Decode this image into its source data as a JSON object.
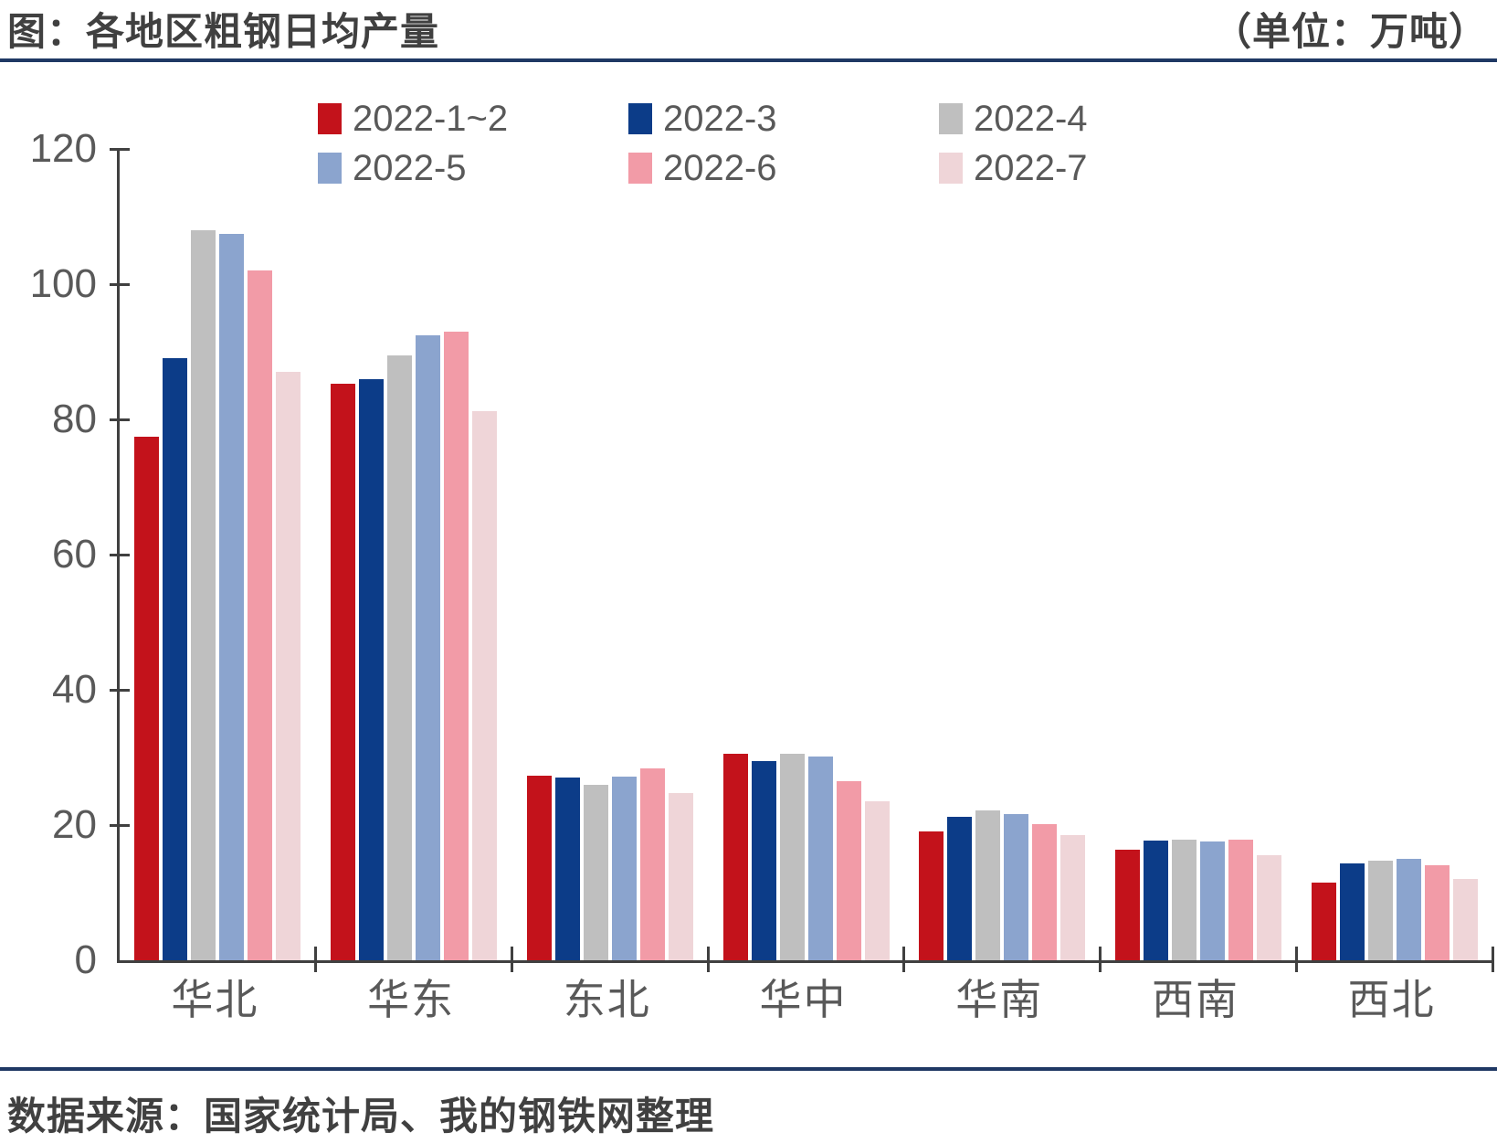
{
  "header": {
    "title": "图：各地区粗钢日均产量",
    "unit": "（单位：万吨）"
  },
  "footer": {
    "source": "数据来源：国家统计局、我的钢铁网整理"
  },
  "colors": {
    "accent_line": "#1F3864",
    "axis": "#404040",
    "tick_label": "#595959",
    "title_text": "#404040"
  },
  "chart_data": {
    "type": "bar",
    "title": "各地区粗钢日均产量",
    "unit_label": "万吨",
    "categories": [
      "华北",
      "华东",
      "东北",
      "华中",
      "华南",
      "西南",
      "西北"
    ],
    "series": [
      {
        "name": "2022-1~2",
        "color": "#C3121B",
        "values": [
          77.5,
          85.3,
          27.3,
          30.6,
          19.1,
          16.4,
          11.5
        ]
      },
      {
        "name": "2022-3",
        "color": "#0C3C88",
        "values": [
          89.0,
          86.0,
          27.1,
          29.5,
          21.2,
          17.7,
          14.3
        ]
      },
      {
        "name": "2022-4",
        "color": "#BFBFBF",
        "values": [
          108.0,
          89.5,
          26.0,
          30.6,
          22.2,
          17.9,
          14.7
        ]
      },
      {
        "name": "2022-5",
        "color": "#8BA4CE",
        "values": [
          107.5,
          92.5,
          27.2,
          30.2,
          21.6,
          17.6,
          15.0
        ]
      },
      {
        "name": "2022-6",
        "color": "#F29BA7",
        "values": [
          102.0,
          93.0,
          28.4,
          26.5,
          20.2,
          17.9,
          14.0
        ]
      },
      {
        "name": "2022-7",
        "color": "#EFD5D8",
        "values": [
          87.0,
          81.2,
          24.7,
          23.5,
          18.5,
          15.5,
          12.0
        ]
      }
    ],
    "ylim": [
      0,
      120
    ],
    "yticks": [
      0,
      20,
      40,
      60,
      80,
      100,
      120
    ],
    "grid": false,
    "legend_position": "top-center"
  }
}
